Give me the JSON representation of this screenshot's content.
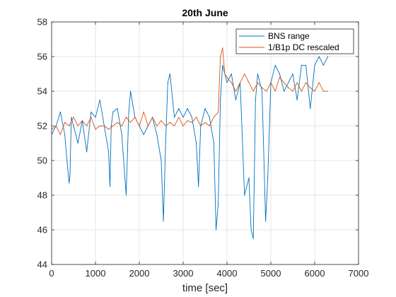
{
  "chart_data": {
    "type": "line",
    "title": "20th June",
    "xlabel": "time [sec]",
    "ylabel": "",
    "xlim": [
      0,
      7000
    ],
    "ylim": [
      44,
      58
    ],
    "xticks": [
      "0",
      "1000",
      "2000",
      "3000",
      "4000",
      "5000",
      "6000",
      "7000"
    ],
    "yticks": [
      "44",
      "46",
      "48",
      "50",
      "52",
      "54",
      "56",
      "58"
    ],
    "grid": true,
    "legend_position": "top-right",
    "series": [
      {
        "name": "BNS range",
        "color": "#0072BD",
        "x": [
          0,
          100,
          200,
          300,
          350,
          400,
          420,
          450,
          500,
          600,
          700,
          800,
          900,
          1000,
          1100,
          1200,
          1300,
          1330,
          1360,
          1400,
          1500,
          1600,
          1700,
          1730,
          1760,
          1800,
          1900,
          2000,
          2100,
          2200,
          2300,
          2400,
          2500,
          2550,
          2600,
          2650,
          2700,
          2800,
          2900,
          3000,
          3100,
          3200,
          3300,
          3350,
          3400,
          3500,
          3600,
          3700,
          3750,
          3800,
          3850,
          3900,
          4000,
          4100,
          4200,
          4300,
          4400,
          4500,
          4550,
          4600,
          4650,
          4700,
          4800,
          4880,
          4930,
          5000,
          5100,
          5200,
          5300,
          5400,
          5500,
          5600,
          5700,
          5800,
          5900,
          6000,
          6100,
          6200,
          6300
        ],
        "y": [
          51.5,
          52.0,
          52.8,
          51.5,
          50.0,
          48.7,
          49.2,
          52.5,
          52.0,
          51.0,
          52.3,
          50.5,
          52.8,
          52.5,
          53.5,
          52.0,
          50.5,
          48.5,
          52.0,
          52.8,
          53.0,
          51.5,
          48.0,
          50.5,
          52.8,
          54.0,
          52.5,
          52.0,
          51.5,
          52.0,
          52.5,
          51.5,
          50.0,
          46.5,
          51.0,
          54.5,
          55.0,
          52.5,
          53.0,
          52.5,
          53.0,
          52.5,
          51.0,
          48.5,
          52.0,
          53.0,
          52.5,
          51.0,
          46.0,
          47.5,
          53.5,
          55.5,
          54.5,
          55.0,
          53.5,
          54.5,
          48.0,
          49.0,
          46.0,
          45.5,
          53.5,
          55.0,
          54.0,
          46.5,
          49.0,
          54.5,
          55.5,
          55.0,
          54.0,
          54.5,
          55.0,
          53.5,
          55.5,
          55.5,
          53.0,
          55.5,
          56.0,
          55.5,
          56.0
        ]
      },
      {
        "name": "1/B1p DC rescaled",
        "color": "#D95319",
        "x": [
          0,
          100,
          200,
          300,
          400,
          500,
          600,
          700,
          800,
          900,
          1000,
          1100,
          1200,
          1300,
          1400,
          1500,
          1600,
          1700,
          1800,
          1900,
          2000,
          2100,
          2200,
          2300,
          2400,
          2500,
          2600,
          2700,
          2800,
          2900,
          3000,
          3100,
          3200,
          3300,
          3400,
          3500,
          3600,
          3700,
          3800,
          3850,
          3900,
          3950,
          4000,
          4100,
          4200,
          4300,
          4400,
          4500,
          4600,
          4700,
          4800,
          4900,
          5000,
          5100,
          5200,
          5300,
          5400,
          5500,
          5600,
          5700,
          5800,
          5900,
          6000,
          6100,
          6200,
          6300
        ],
        "y": [
          51.8,
          52.0,
          51.5,
          52.2,
          52.0,
          52.5,
          52.0,
          52.3,
          52.0,
          52.5,
          51.8,
          52.0,
          52.0,
          51.8,
          52.0,
          52.2,
          52.0,
          52.5,
          52.2,
          52.5,
          52.0,
          52.8,
          52.0,
          52.5,
          52.0,
          52.3,
          52.0,
          52.2,
          52.0,
          52.5,
          52.0,
          52.3,
          52.2,
          52.5,
          52.0,
          52.2,
          52.0,
          52.5,
          52.8,
          56.0,
          56.5,
          55.0,
          54.8,
          54.5,
          54.0,
          54.5,
          55.0,
          54.5,
          54.0,
          54.5,
          54.2,
          54.0,
          54.5,
          54.0,
          54.8,
          54.5,
          54.2,
          54.0,
          54.5,
          54.0,
          54.5,
          54.2,
          54.0,
          54.5,
          54.0,
          54.0
        ]
      }
    ]
  }
}
